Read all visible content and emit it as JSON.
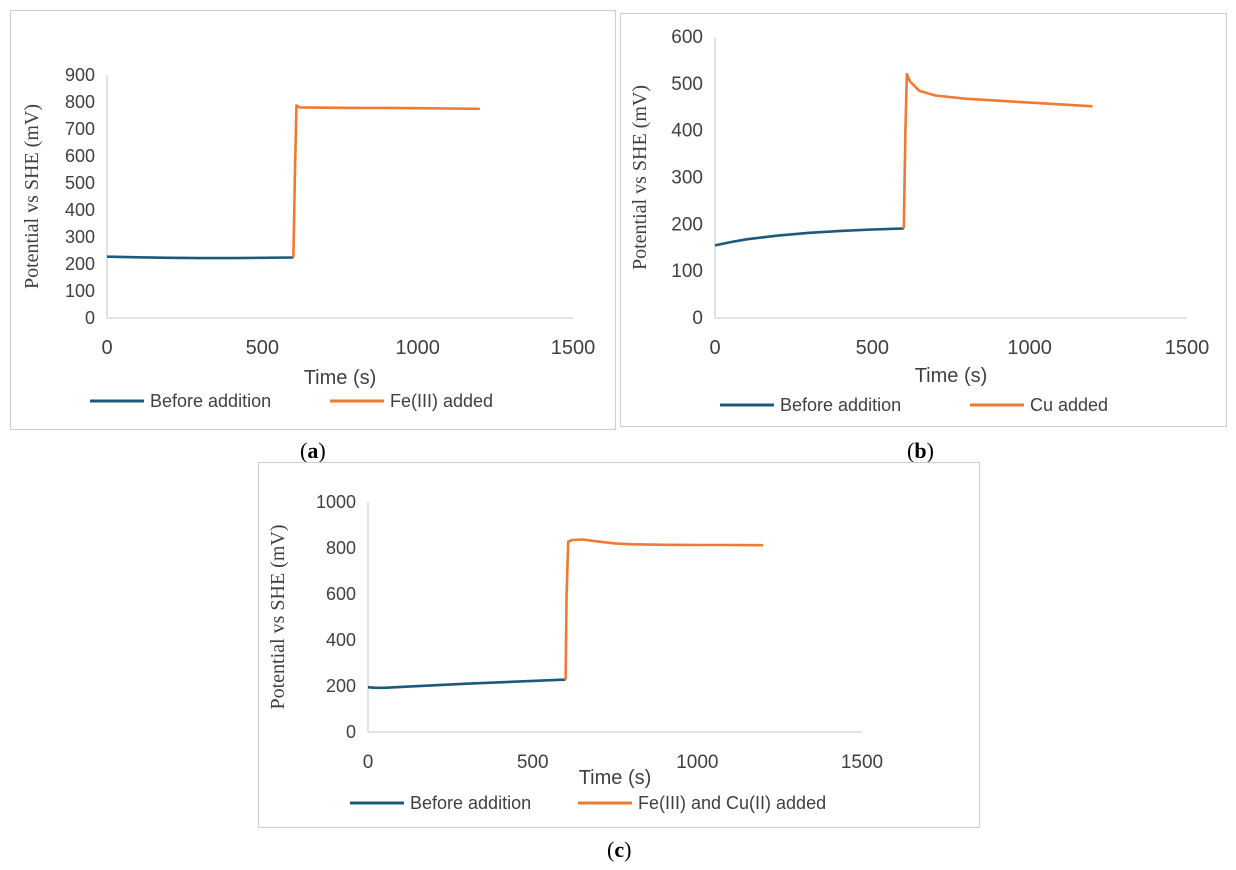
{
  "colors": {
    "before": "#1b5a7a",
    "after": "#ee7a33",
    "axis": "#d9d9d9",
    "frame": "#cfcfcf",
    "text": "#404040"
  },
  "chart_data": [
    {
      "type": "line",
      "panel_label": "a",
      "xlabel": "Time (s)",
      "ylabel": "Potential vs SHE (mV)",
      "xlim": [
        0,
        1500
      ],
      "ylim": [
        0,
        900
      ],
      "xticks": [
        0,
        500,
        1000,
        1500
      ],
      "yticks": [
        0,
        100,
        200,
        300,
        400,
        500,
        600,
        700,
        800,
        900
      ],
      "grid": false,
      "legend_position": "bottom",
      "series": [
        {
          "name": "Before addition",
          "color_key": "before",
          "x": [
            0,
            100,
            200,
            300,
            400,
            500,
            600
          ],
          "y": [
            227,
            225,
            223,
            222,
            222,
            223,
            224
          ]
        },
        {
          "name": "Fe(III) added",
          "color_key": "after",
          "x": [
            600,
            605,
            610,
            620,
            700,
            800,
            900,
            1000,
            1100,
            1200
          ],
          "y": [
            224,
            550,
            787,
            780,
            779,
            778,
            778,
            777,
            776,
            775
          ]
        }
      ]
    },
    {
      "type": "line",
      "panel_label": "b",
      "xlabel": "Time (s)",
      "ylabel": "Potential vs SHE (mV)",
      "xlim": [
        0,
        1500
      ],
      "ylim": [
        0,
        600
      ],
      "xticks": [
        0,
        500,
        1000,
        1500
      ],
      "yticks": [
        0,
        100,
        200,
        300,
        400,
        500,
        600
      ],
      "grid": false,
      "legend_position": "bottom",
      "series": [
        {
          "name": "Before addition",
          "color_key": "before",
          "x": [
            0,
            50,
            100,
            200,
            300,
            400,
            500,
            600
          ],
          "y": [
            155,
            162,
            168,
            176,
            182,
            186,
            189,
            191
          ]
        },
        {
          "name": "Cu added",
          "color_key": "after",
          "x": [
            600,
            605,
            610,
            620,
            650,
            700,
            800,
            900,
            1000,
            1100,
            1200
          ],
          "y": [
            191,
            400,
            521,
            505,
            485,
            475,
            468,
            464,
            460,
            456,
            452
          ]
        }
      ]
    },
    {
      "type": "line",
      "panel_label": "c",
      "xlabel": "Time (s)",
      "ylabel": "Potential vs SHE (mV)",
      "xlim": [
        0,
        1500
      ],
      "ylim": [
        0,
        1000
      ],
      "xticks": [
        0,
        500,
        1000,
        1500
      ],
      "yticks": [
        0,
        200,
        400,
        600,
        800,
        1000
      ],
      "grid": false,
      "legend_position": "bottom",
      "series": [
        {
          "name": "Before addition",
          "color_key": "before",
          "x": [
            0,
            20,
            50,
            100,
            200,
            300,
            400,
            500,
            600
          ],
          "y": [
            195,
            192,
            192,
            196,
            203,
            210,
            216,
            222,
            228
          ]
        },
        {
          "name": "Fe(III) and Cu(II) added",
          "color_key": "after",
          "x": [
            600,
            603,
            608,
            620,
            650,
            700,
            750,
            800,
            900,
            1000,
            1100,
            1200
          ],
          "y": [
            228,
            600,
            828,
            835,
            837,
            828,
            820,
            816,
            814,
            813,
            813,
            812
          ]
        }
      ]
    }
  ]
}
